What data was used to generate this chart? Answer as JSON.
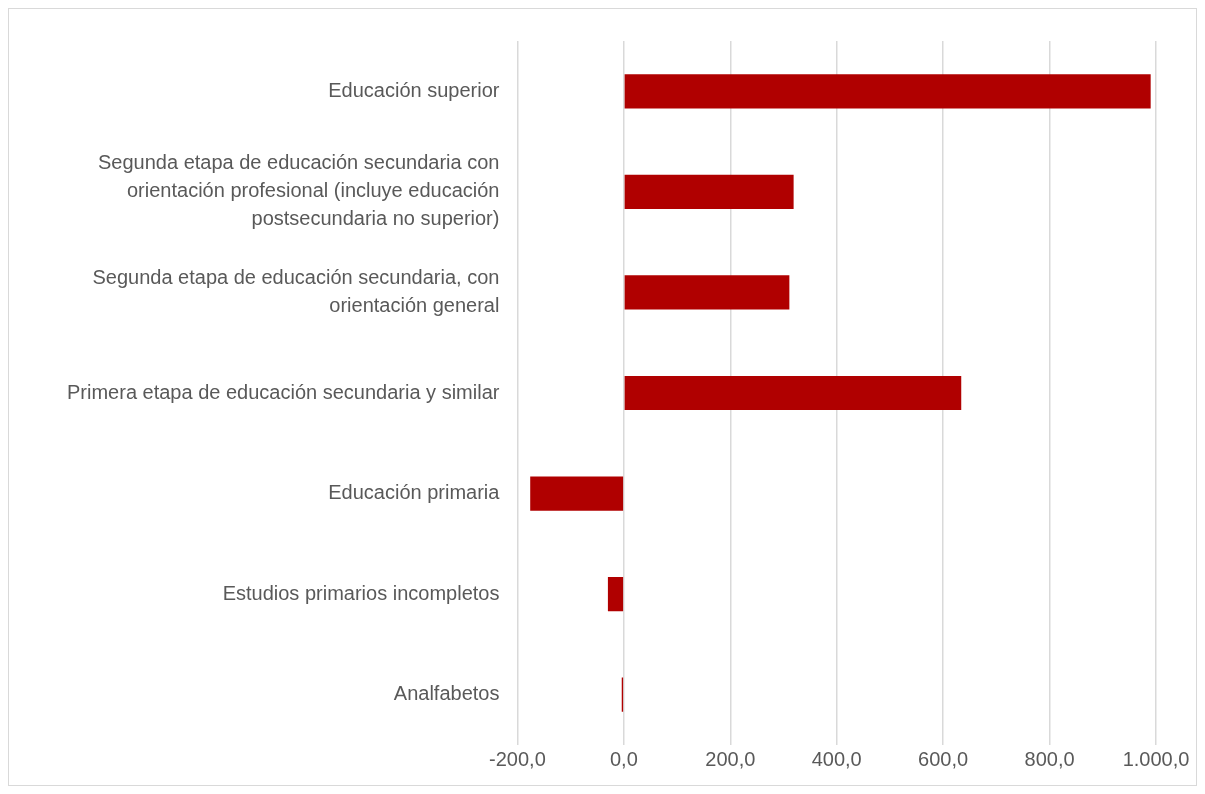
{
  "chart_data": {
    "type": "bar",
    "orientation": "horizontal",
    "categories": [
      "Educación superior",
      "Segunda etapa de educación secundaria con orientación profesional (incluye educación postsecundaria no superior)",
      "Segunda etapa de educación secundaria, con orientación general",
      "Primera etapa de educación secundaria y similar",
      "Educación primaria",
      "Estudios primarios incompletos",
      "Analfabetos"
    ],
    "values": [
      990,
      319,
      311,
      634,
      -176,
      -30,
      -4
    ],
    "color": "#b00000",
    "xlim": [
      -200,
      1000
    ],
    "xticks": [
      {
        "value": -200,
        "label": "-200,0"
      },
      {
        "value": 0,
        "label": "0,0"
      },
      {
        "value": 200,
        "label": "200,0"
      },
      {
        "value": 400,
        "label": "400,0"
      },
      {
        "value": 600,
        "label": "600,0"
      },
      {
        "value": 800,
        "label": "800,0"
      },
      {
        "value": 1000,
        "label": "1.000,0"
      }
    ],
    "grid": "x",
    "legend": false
  }
}
